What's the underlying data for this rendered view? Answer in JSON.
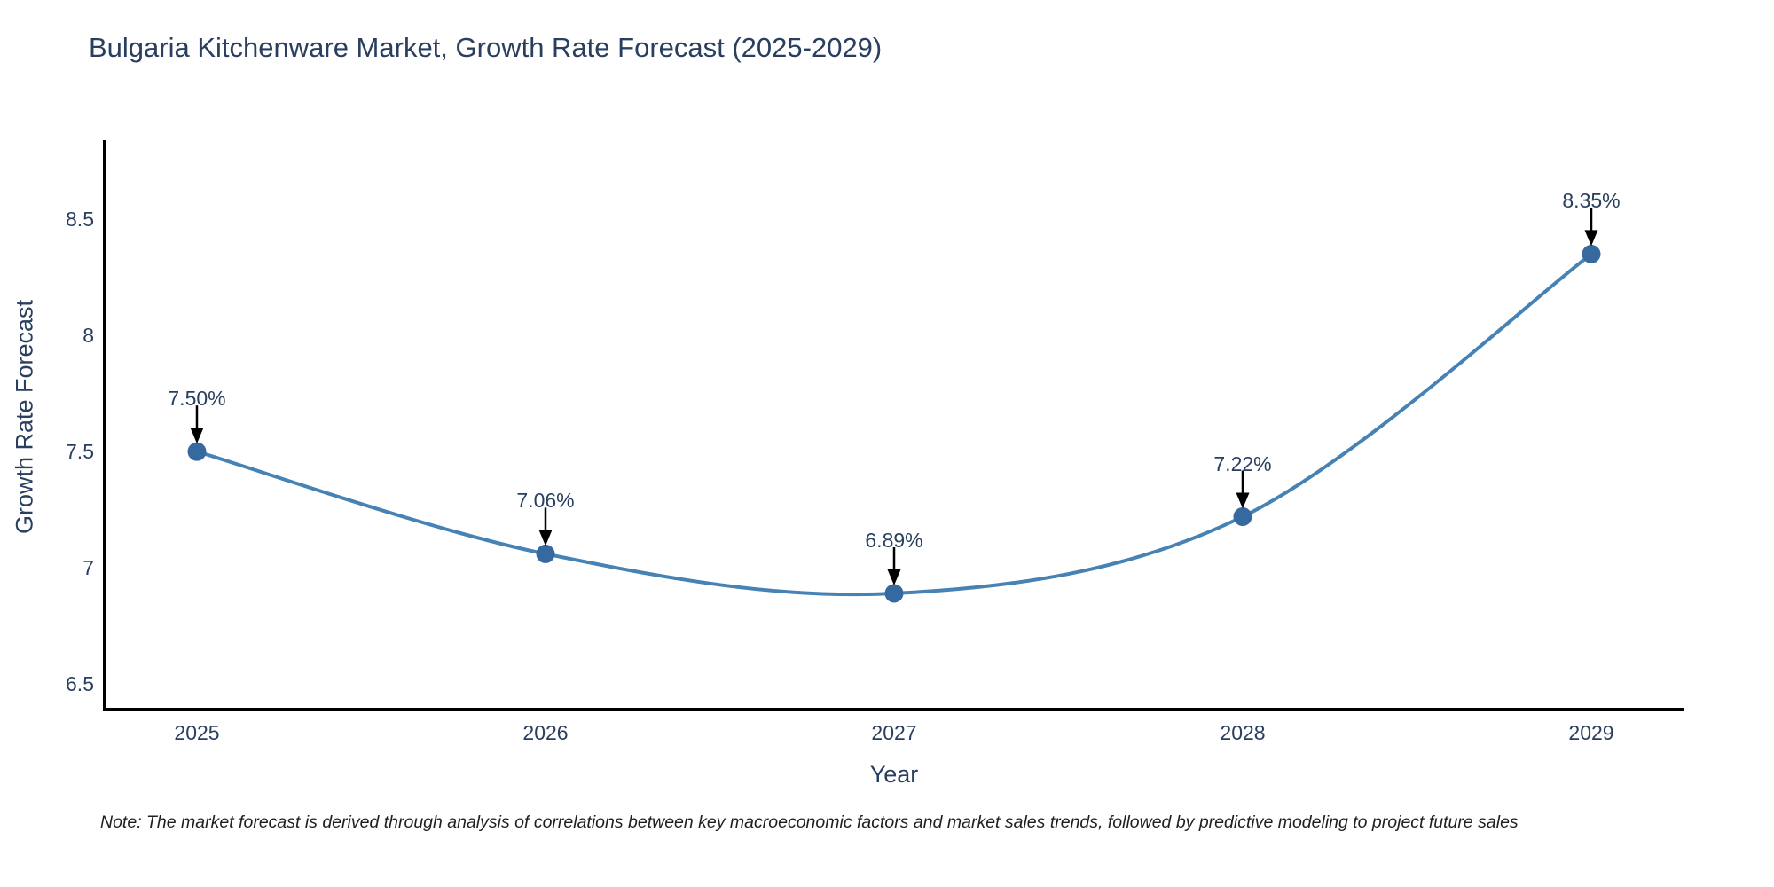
{
  "note": "Note: The market forecast is derived through analysis of correlations between key macroeconomic factors and market sales trends, followed by predictive modeling to project future sales",
  "chart_data": {
    "type": "line",
    "line_shape": "spline",
    "title": "Bulgaria Kitchenware Market, Growth Rate Forecast (2025-2029)",
    "xlabel": "Year",
    "ylabel": "Growth Rate Forecast",
    "categories": [
      "2025",
      "2026",
      "2027",
      "2028",
      "2029"
    ],
    "values": [
      7.5,
      7.06,
      6.89,
      7.22,
      8.35
    ],
    "point_labels": [
      "7.50%",
      "7.06%",
      "6.89%",
      "7.22%",
      "8.35%"
    ],
    "yticks": [
      6.5,
      7,
      7.5,
      8,
      8.5
    ],
    "ytick_labels": [
      "6.5",
      "7",
      "7.5",
      "8",
      "8.5"
    ],
    "ylim": [
      6.39,
      8.84
    ],
    "grid": false,
    "legend": "none",
    "markers": true,
    "annotations_arrows": true,
    "colors": {
      "line": "#4682b4",
      "marker": "#36699f",
      "arrow": "#000000",
      "axis": "#000000",
      "text": "#2a3f5f",
      "note_text": "#1f1f1f",
      "background": "#ffffff"
    }
  }
}
